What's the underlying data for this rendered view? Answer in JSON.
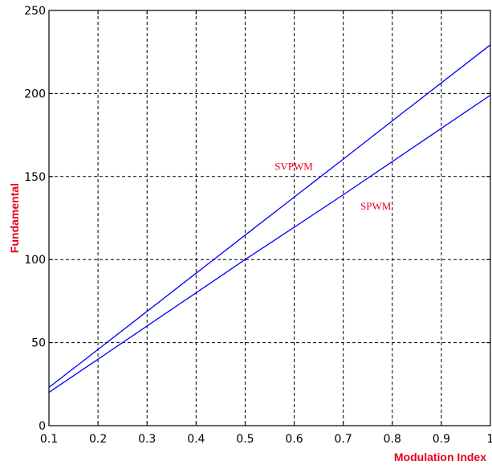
{
  "chart_data": {
    "type": "line",
    "title": "",
    "xlabel": "Modulation Index",
    "ylabel": "Fundamental",
    "xlim": [
      0.1,
      1.0
    ],
    "ylim": [
      0,
      250
    ],
    "xticks": [
      0.1,
      0.2,
      0.3,
      0.4,
      0.5,
      0.6,
      0.7,
      0.8,
      0.9,
      1
    ],
    "xtick_labels": [
      "0.1",
      "0.2",
      "0.3",
      "0.4",
      "0.5",
      "0.6",
      "0.7",
      "0.8",
      "0.9",
      "1"
    ],
    "yticks": [
      0,
      50,
      100,
      150,
      200,
      250
    ],
    "ytick_labels": [
      "0",
      "50",
      "100",
      "150",
      "200",
      "250"
    ],
    "grid": true,
    "series": [
      {
        "name": "SVPWM",
        "color": "#0000ff",
        "x": [
          0.1,
          0.2,
          0.3,
          0.4,
          0.5,
          0.6,
          0.7,
          0.8,
          0.9,
          1.0
        ],
        "y": [
          23,
          45.9,
          68.8,
          91.8,
          114.7,
          137.6,
          160.5,
          183.5,
          206.4,
          229.3
        ]
      },
      {
        "name": "SPWM",
        "color": "#0000ff",
        "x": [
          0.1,
          0.2,
          0.3,
          0.4,
          0.5,
          0.6,
          0.7,
          0.8,
          0.9,
          1.0
        ],
        "y": [
          20,
          40,
          60,
          80,
          100,
          119.5,
          139,
          159,
          179,
          199
        ]
      }
    ],
    "annotations": [
      {
        "text": "SVPWM",
        "x": 0.56,
        "y": 154,
        "color": "#e8001c"
      },
      {
        "text": "SPWM",
        "x": 0.735,
        "y": 130,
        "color": "#e8001c"
      }
    ],
    "colors": {
      "axis_title": "#e8001c",
      "annotation": "#e8001c",
      "line": "#0000ff",
      "grid": "#000000",
      "axes": "#000000"
    }
  }
}
